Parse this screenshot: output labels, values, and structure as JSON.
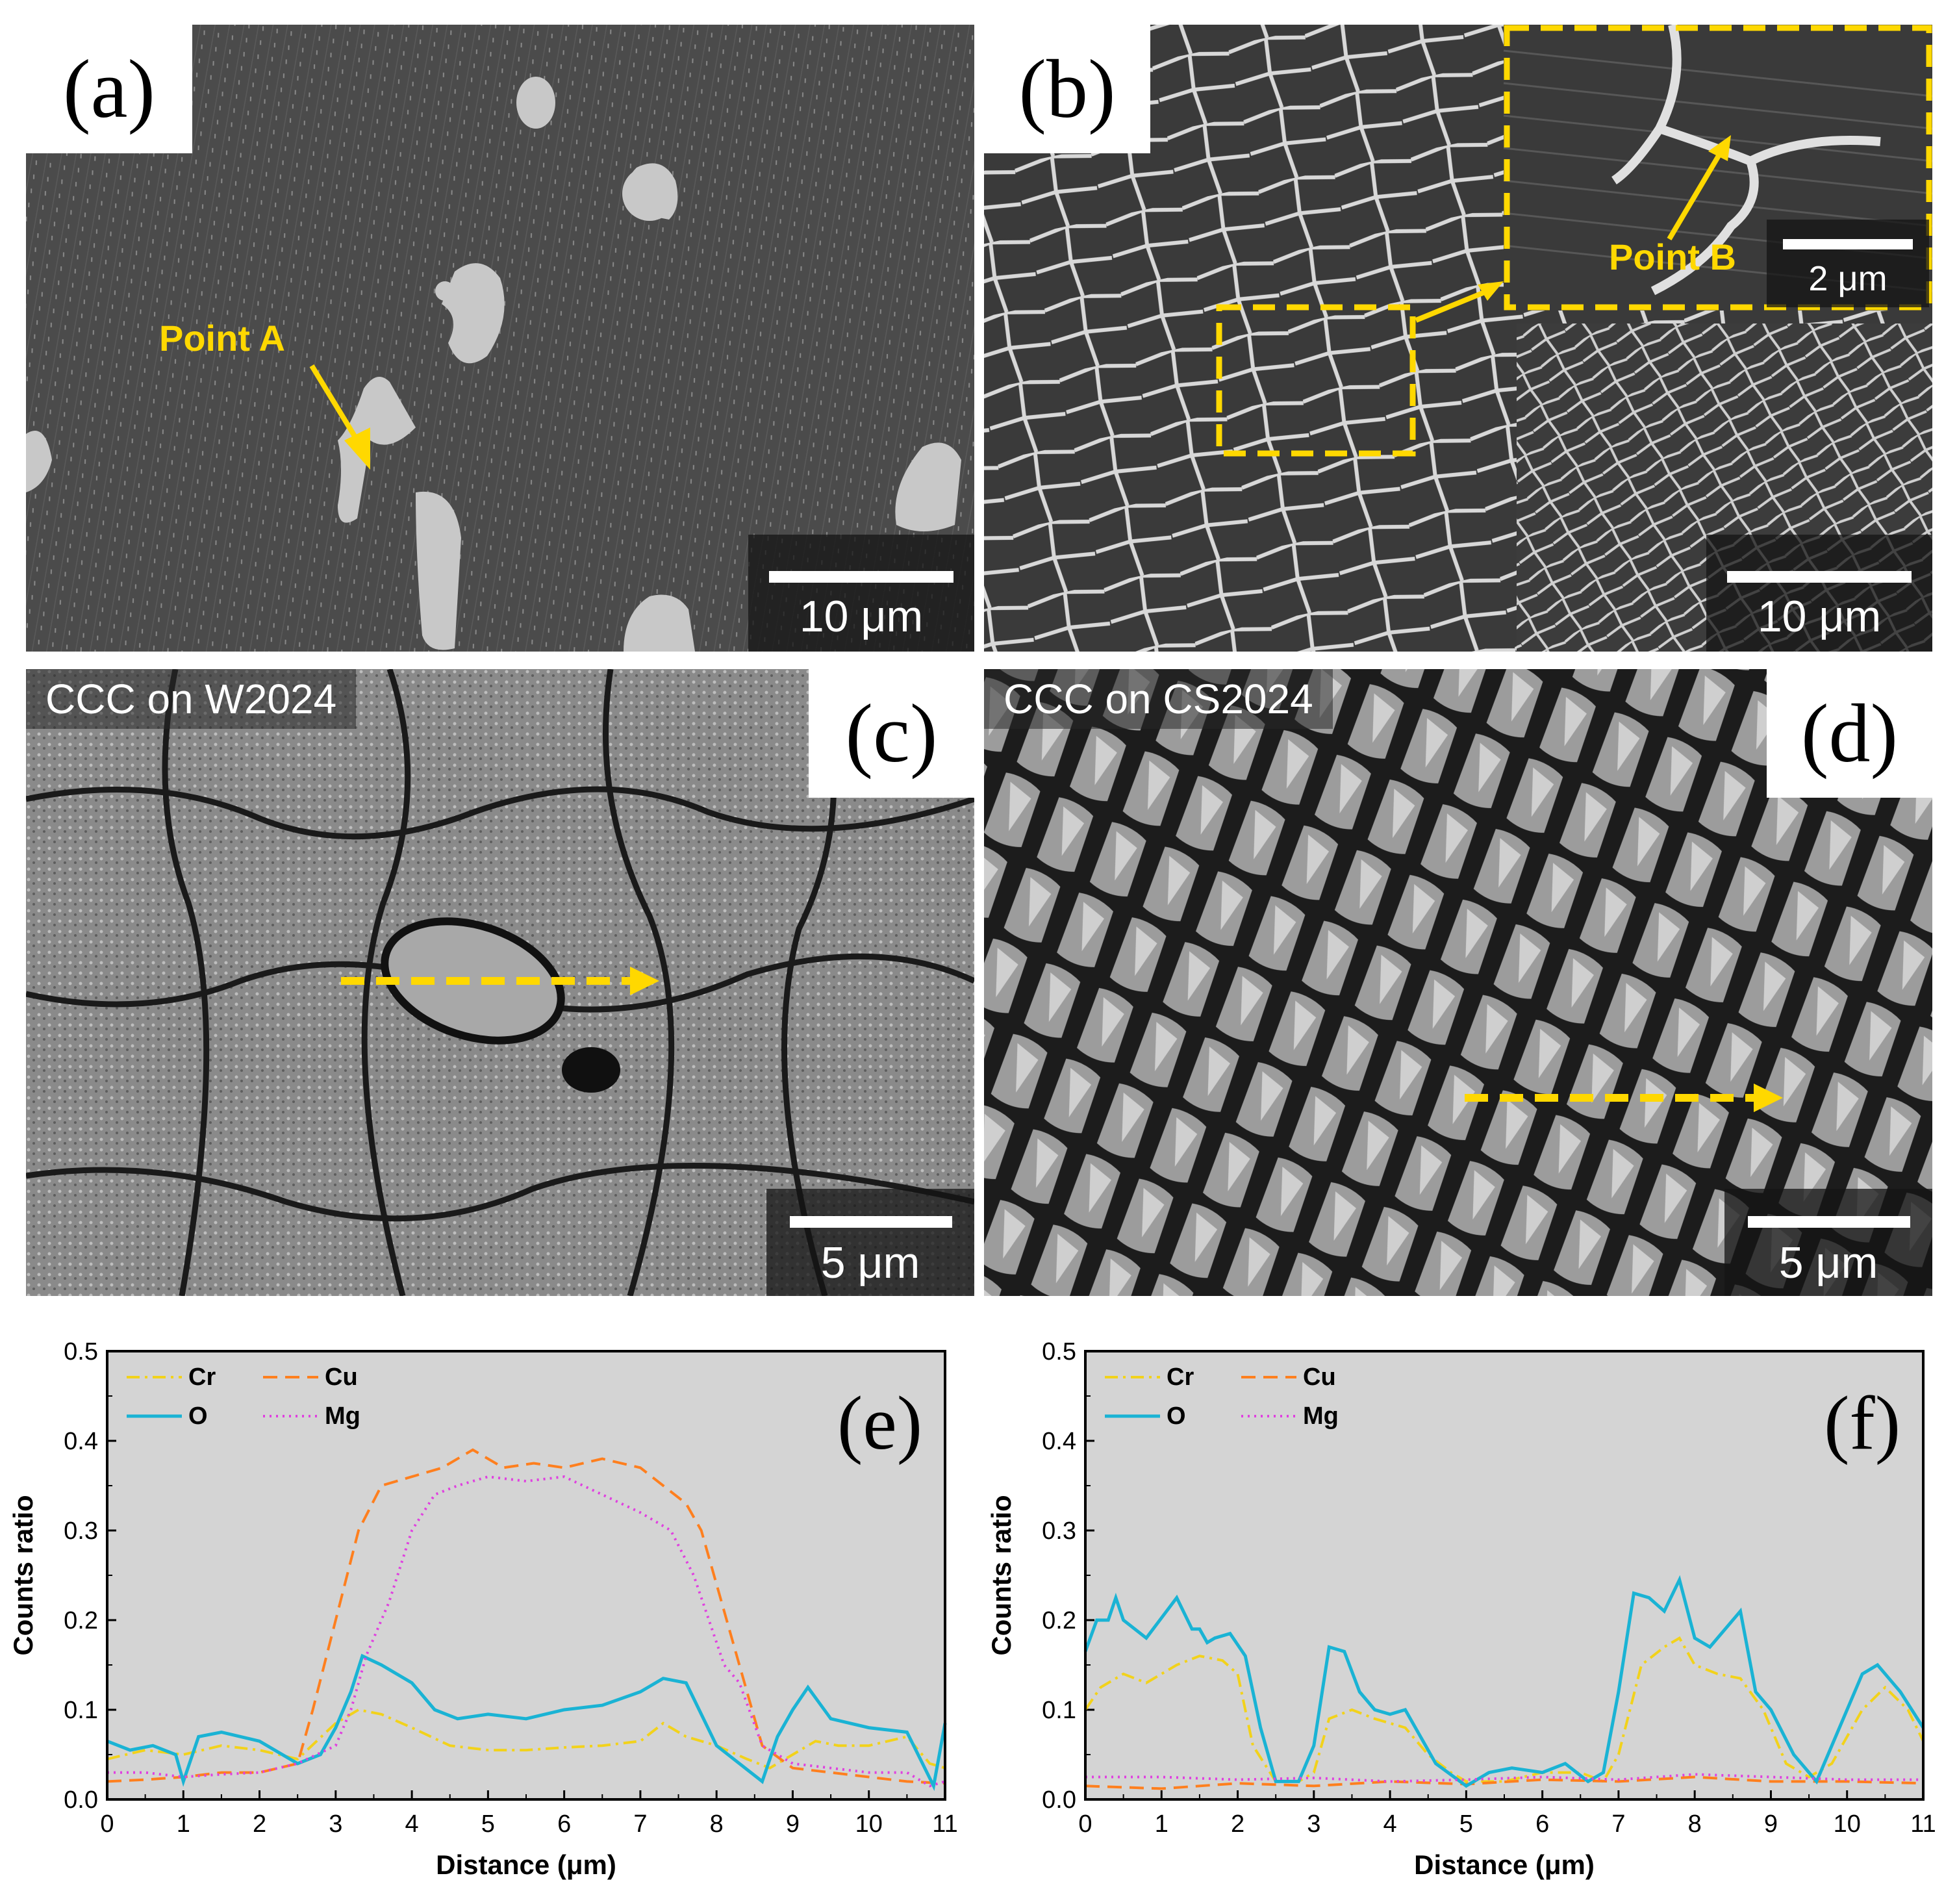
{
  "panels": {
    "a": {
      "letter": "(a)",
      "scale_label": "10 μm",
      "callout": "Point A"
    },
    "b": {
      "letter": "(b)",
      "scale_label": "10 μm",
      "inset_scale_label": "2 μm",
      "callout": "Point B"
    },
    "c": {
      "letter": "(c)",
      "scale_label": "5 μm",
      "caption": "CCC on W2024"
    },
    "d": {
      "letter": "(d)",
      "scale_label": "5 μm",
      "caption": "CCC on CS2024"
    }
  },
  "colors": {
    "Cr": "#f2d21b",
    "Cu": "#ff7f1e",
    "O": "#1ab3d4",
    "Mg": "#e040e0",
    "plot_bg": "#d4d4d4",
    "arrow": "#ffd800"
  },
  "chart_data": [
    {
      "type": "line",
      "panel_label": "(e)",
      "xlabel": "Distance (μm)",
      "ylabel": "Counts ratio",
      "xlim": [
        0,
        11
      ],
      "ylim": [
        0,
        0.5
      ],
      "xticks": [
        0,
        1,
        2,
        3,
        4,
        5,
        6,
        7,
        8,
        9,
        10,
        11
      ],
      "yticks": [
        0.0,
        0.1,
        0.2,
        0.3,
        0.4,
        0.5
      ],
      "legend_position": "top-left",
      "series": [
        {
          "name": "Cr",
          "style": "dash-dot",
          "x": [
            0,
            0.5,
            1,
            1.5,
            2,
            2.5,
            3,
            3.3,
            3.6,
            4,
            4.5,
            5,
            5.5,
            6,
            6.5,
            7,
            7.3,
            7.6,
            8,
            8.4,
            8.7,
            9,
            9.3,
            9.6,
            10,
            10.5,
            10.8,
            11
          ],
          "y": [
            0.045,
            0.055,
            0.05,
            0.06,
            0.055,
            0.045,
            0.085,
            0.1,
            0.095,
            0.08,
            0.06,
            0.055,
            0.055,
            0.058,
            0.06,
            0.065,
            0.085,
            0.07,
            0.06,
            0.045,
            0.035,
            0.05,
            0.065,
            0.06,
            0.06,
            0.07,
            0.04,
            0.035
          ]
        },
        {
          "name": "Cu",
          "style": "dashed",
          "x": [
            0,
            0.5,
            1,
            1.5,
            2,
            2.5,
            2.7,
            3,
            3.3,
            3.6,
            4,
            4.4,
            4.8,
            5.2,
            5.6,
            6,
            6.5,
            7,
            7.3,
            7.6,
            7.8,
            8,
            8.2,
            8.4,
            8.6,
            9,
            9.5,
            10,
            10.5,
            11
          ],
          "y": [
            0.02,
            0.022,
            0.025,
            0.03,
            0.03,
            0.04,
            0.1,
            0.2,
            0.3,
            0.35,
            0.36,
            0.37,
            0.39,
            0.37,
            0.375,
            0.37,
            0.38,
            0.37,
            0.35,
            0.33,
            0.3,
            0.24,
            0.18,
            0.12,
            0.06,
            0.035,
            0.03,
            0.025,
            0.02,
            0.018
          ]
        },
        {
          "name": "O",
          "style": "solid",
          "x": [
            0,
            0.3,
            0.6,
            0.9,
            1,
            1.2,
            1.5,
            2,
            2.5,
            2.8,
            3,
            3.2,
            3.35,
            3.6,
            4,
            4.3,
            4.6,
            5,
            5.5,
            6,
            6.5,
            7,
            7.3,
            7.6,
            8,
            8.3,
            8.6,
            8.8,
            9,
            9.2,
            9.5,
            10,
            10.5,
            10.85,
            11
          ],
          "y": [
            0.065,
            0.055,
            0.06,
            0.05,
            0.02,
            0.07,
            0.075,
            0.065,
            0.04,
            0.05,
            0.08,
            0.12,
            0.16,
            0.15,
            0.13,
            0.1,
            0.09,
            0.095,
            0.09,
            0.1,
            0.105,
            0.12,
            0.135,
            0.13,
            0.06,
            0.04,
            0.02,
            0.07,
            0.1,
            0.125,
            0.09,
            0.08,
            0.075,
            0.015,
            0.085
          ]
        },
        {
          "name": "Mg",
          "style": "dotted",
          "x": [
            0,
            0.5,
            1,
            1.5,
            2,
            2.5,
            3,
            3.2,
            3.4,
            3.7,
            4,
            4.3,
            4.6,
            5,
            5.5,
            6,
            6.5,
            7,
            7.4,
            7.7,
            7.9,
            8.1,
            8.3,
            8.6,
            9,
            9.5,
            10,
            10.5,
            10.8,
            11
          ],
          "y": [
            0.03,
            0.03,
            0.025,
            0.028,
            0.03,
            0.04,
            0.06,
            0.1,
            0.16,
            0.22,
            0.3,
            0.34,
            0.35,
            0.36,
            0.355,
            0.36,
            0.34,
            0.32,
            0.3,
            0.25,
            0.2,
            0.15,
            0.13,
            0.06,
            0.04,
            0.035,
            0.03,
            0.03,
            0.015,
            0.02
          ]
        }
      ]
    },
    {
      "type": "line",
      "panel_label": "(f)",
      "xlabel": "Distance (μm)",
      "ylabel": "Counts ratio",
      "xlim": [
        0,
        11
      ],
      "ylim": [
        0,
        0.5
      ],
      "xticks": [
        0,
        1,
        2,
        3,
        4,
        5,
        6,
        7,
        8,
        9,
        10,
        11
      ],
      "yticks": [
        0.0,
        0.1,
        0.2,
        0.3,
        0.4,
        0.5
      ],
      "legend_position": "top-left",
      "series": [
        {
          "name": "Cr",
          "style": "dash-dot",
          "x": [
            0,
            0.2,
            0.5,
            0.8,
            1.2,
            1.5,
            1.8,
            2,
            2.2,
            2.5,
            2.8,
            3,
            3.2,
            3.5,
            3.8,
            4.2,
            4.5,
            4.8,
            5,
            5.5,
            6,
            6.5,
            6.8,
            7,
            7.3,
            7.6,
            7.8,
            8,
            8.3,
            8.6,
            8.9,
            9.2,
            9.5,
            9.8,
            10.2,
            10.5,
            10.8,
            11
          ],
          "y": [
            0.1,
            0.125,
            0.14,
            0.13,
            0.15,
            0.16,
            0.155,
            0.14,
            0.06,
            0.02,
            0.02,
            0.03,
            0.09,
            0.1,
            0.09,
            0.08,
            0.05,
            0.03,
            0.02,
            0.02,
            0.03,
            0.03,
            0.02,
            0.05,
            0.15,
            0.17,
            0.18,
            0.15,
            0.14,
            0.135,
            0.1,
            0.04,
            0.025,
            0.04,
            0.1,
            0.125,
            0.1,
            0.065
          ]
        },
        {
          "name": "Cu",
          "style": "dashed",
          "x": [
            0,
            1,
            2,
            3,
            4,
            5,
            6,
            7,
            8,
            9,
            10,
            11
          ],
          "y": [
            0.015,
            0.012,
            0.018,
            0.015,
            0.02,
            0.017,
            0.022,
            0.02,
            0.025,
            0.02,
            0.02,
            0.018
          ]
        },
        {
          "name": "O",
          "style": "solid",
          "x": [
            0,
            0.15,
            0.3,
            0.4,
            0.5,
            0.8,
            1.2,
            1.4,
            1.5,
            1.6,
            1.7,
            1.9,
            2.1,
            2.3,
            2.5,
            2.8,
            3,
            3.2,
            3.4,
            3.6,
            3.8,
            4,
            4.2,
            4.4,
            4.6,
            5,
            5.3,
            5.6,
            6,
            6.3,
            6.6,
            6.8,
            7,
            7.2,
            7.4,
            7.6,
            7.8,
            8,
            8.2,
            8.4,
            8.6,
            8.8,
            9,
            9.3,
            9.6,
            9.9,
            10.2,
            10.4,
            10.7,
            11
          ],
          "y": [
            0.165,
            0.2,
            0.2,
            0.225,
            0.2,
            0.18,
            0.225,
            0.19,
            0.19,
            0.175,
            0.18,
            0.185,
            0.16,
            0.08,
            0.02,
            0.02,
            0.06,
            0.17,
            0.165,
            0.12,
            0.1,
            0.095,
            0.1,
            0.07,
            0.04,
            0.015,
            0.03,
            0.035,
            0.03,
            0.04,
            0.02,
            0.03,
            0.12,
            0.23,
            0.225,
            0.21,
            0.245,
            0.18,
            0.17,
            0.19,
            0.21,
            0.12,
            0.1,
            0.05,
            0.02,
            0.08,
            0.14,
            0.15,
            0.12,
            0.08
          ]
        },
        {
          "name": "Mg",
          "style": "dotted",
          "x": [
            0,
            1,
            2,
            3,
            4,
            5,
            6,
            7,
            8,
            9,
            10,
            11
          ],
          "y": [
            0.025,
            0.025,
            0.022,
            0.024,
            0.02,
            0.022,
            0.025,
            0.022,
            0.028,
            0.025,
            0.022,
            0.022
          ]
        }
      ]
    }
  ]
}
